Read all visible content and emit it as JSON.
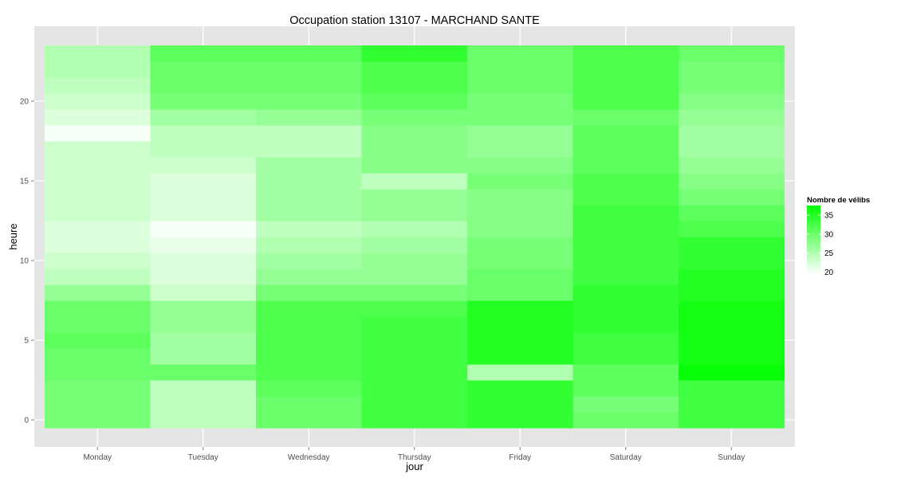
{
  "chart_data": {
    "type": "heatmap",
    "title": "Occupation station 13107 - MARCHAND SANTE",
    "xlabel": "jour",
    "ylabel": "heure",
    "x_categories": [
      "Monday",
      "Tuesday",
      "Wednesday",
      "Thursday",
      "Friday",
      "Saturday",
      "Sunday"
    ],
    "y_hours": [
      0,
      1,
      2,
      3,
      4,
      5,
      6,
      7,
      8,
      9,
      10,
      11,
      12,
      13,
      14,
      15,
      16,
      17,
      18,
      19,
      20,
      21,
      22,
      23
    ],
    "y_range": [
      -0.5,
      23.5
    ],
    "y_ticks": [
      0,
      5,
      10,
      15,
      20
    ],
    "legend": {
      "title": "Nombre de vélibs",
      "ticks": [
        20,
        25,
        30,
        35
      ],
      "range": [
        19.5,
        37.5
      ],
      "low_color": "#ffffff",
      "high_color": "#00ff00",
      "position": "right"
    },
    "panel_background": "#e5e5e5",
    "grid_color": "#ffffff",
    "grid": true,
    "values": [
      [
        29,
        24,
        30,
        33,
        34,
        30,
        33
      ],
      [
        29,
        24,
        30,
        33,
        34,
        29,
        33
      ],
      [
        29,
        24,
        31,
        33,
        34,
        31,
        33
      ],
      [
        30,
        30,
        32,
        33,
        25,
        31,
        37
      ],
      [
        30,
        26,
        32,
        33,
        35,
        33,
        36
      ],
      [
        31,
        26,
        32,
        33,
        35,
        33,
        36
      ],
      [
        30,
        27,
        32,
        33,
        35,
        34,
        36
      ],
      [
        30,
        27,
        32,
        32,
        35,
        34,
        36
      ],
      [
        27,
        23,
        29,
        29,
        30,
        34,
        35
      ],
      [
        24,
        22,
        27,
        27,
        30,
        33,
        35
      ],
      [
        23,
        22,
        26,
        27,
        29,
        33,
        34
      ],
      [
        22,
        21,
        25,
        26,
        29,
        33,
        34
      ],
      [
        22,
        20,
        24,
        25,
        28,
        33,
        32
      ],
      [
        23,
        22,
        26,
        27,
        28,
        33,
        31
      ],
      [
        23,
        22,
        26,
        27,
        28,
        32,
        29
      ],
      [
        23,
        22,
        26,
        24,
        29,
        32,
        28
      ],
      [
        23,
        23,
        26,
        28,
        28,
        31,
        27
      ],
      [
        23,
        24,
        24,
        28,
        27,
        31,
        26
      ],
      [
        20,
        24,
        24,
        28,
        27,
        31,
        26
      ],
      [
        22,
        26,
        27,
        29,
        29,
        30,
        27
      ],
      [
        23,
        29,
        29,
        31,
        29,
        32,
        28
      ],
      [
        24,
        30,
        30,
        32,
        30,
        32,
        29
      ],
      [
        25,
        30,
        30,
        32,
        30,
        32,
        29
      ],
      [
        25,
        31,
        31,
        34,
        30,
        32,
        30
      ]
    ]
  }
}
